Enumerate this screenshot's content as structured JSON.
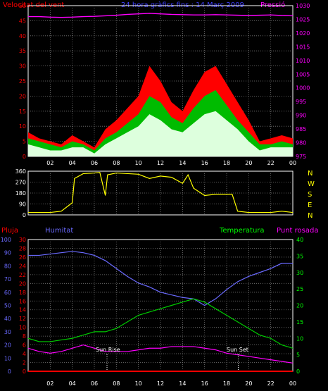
{
  "colors": {
    "background": "#000000",
    "panel_border": "#ffffff",
    "grid": "#7a7a7a",
    "wind_speed": "#ff0000",
    "wind_avg": "#00bb00",
    "wind_low": "#ddffdd",
    "pressure": "#ff00ff",
    "wind_dir": "#ffff00",
    "humidity": "#6a6aff",
    "temperature": "#00cc00",
    "dewpoint": "#ff00ff",
    "rain": "#ff0000",
    "header_title": "#4040ff",
    "label_red": "#ff0000",
    "label_green": "#00ff00",
    "label_magenta": "#ff00ff",
    "tick_white": "#ffffff",
    "marker": "#ffffff"
  },
  "header": {
    "left": "Velocitat del vent",
    "center": "24 hora gràfics fins : 14 Març 2009",
    "right": "Pressió"
  },
  "dir_letters": [
    "N",
    "W",
    "S",
    "E",
    "N"
  ],
  "lower_header": {
    "rain": "Pluja",
    "humidity": "Humitat",
    "temperature": "Temperatura",
    "dewpoint": "Punt rosada"
  },
  "markers": {
    "sunrise": "Sun Rise",
    "sunset": "Sun Set"
  },
  "chart_data": [
    {
      "type": "line",
      "title": "",
      "x_label_ticks": [
        "02",
        "04",
        "06",
        "08",
        "10",
        "12",
        "14",
        "16",
        "18",
        "20",
        "22",
        "00"
      ],
      "x_hours": [
        0,
        1,
        2,
        3,
        4,
        5,
        6,
        7,
        8,
        9,
        10,
        11,
        12,
        13,
        14,
        15,
        16,
        17,
        18,
        19,
        20,
        21,
        22,
        23,
        24
      ],
      "y_left": {
        "label": "Velocitat del vent",
        "range": [
          0,
          50
        ],
        "ticks": [
          0,
          5,
          10,
          15,
          20,
          25,
          30,
          35,
          40,
          45,
          50
        ]
      },
      "y_right": {
        "label": "Pressió",
        "range": [
          975,
          1030
        ],
        "ticks": [
          975,
          980,
          985,
          990,
          995,
          1000,
          1005,
          1010,
          1015,
          1020,
          1025,
          1030
        ]
      },
      "grid": true,
      "series": [
        {
          "name": "Velocitat del vent",
          "axis": "left",
          "values": [
            8,
            6,
            5,
            4,
            7,
            5,
            3,
            9,
            12,
            16,
            20,
            30,
            25,
            18,
            15,
            22,
            28,
            30,
            24,
            18,
            12,
            5,
            6,
            7,
            6
          ]
        },
        {
          "axis": "left",
          "values": [
            6,
            5,
            4,
            3,
            5,
            4,
            2,
            6,
            8,
            11,
            14,
            20,
            18,
            13,
            11,
            16,
            20,
            22,
            17,
            12,
            8,
            4,
            4,
            5,
            4
          ]
        },
        {
          "axis": "left",
          "values": [
            4,
            3,
            2,
            2,
            3,
            3,
            1,
            4,
            6,
            8,
            10,
            14,
            12,
            9,
            8,
            11,
            14,
            15,
            12,
            9,
            5,
            2,
            3,
            3,
            3
          ]
        },
        {
          "name": "Pressió",
          "axis": "right",
          "values": [
            1026,
            1026,
            1025.8,
            1025.7,
            1025.8,
            1026,
            1026.1,
            1026.3,
            1026.5,
            1026.8,
            1027,
            1027.2,
            1027,
            1026.8,
            1026.7,
            1026.6,
            1026.6,
            1026.7,
            1026.6,
            1026.5,
            1026.4,
            1026.5,
            1026.6,
            1026.4,
            1026.3
          ]
        }
      ]
    },
    {
      "type": "line",
      "title": "",
      "y": {
        "range": [
          0,
          360
        ],
        "ticks": [
          0,
          90,
          180,
          270,
          360
        ]
      },
      "grid": true,
      "series": [
        {
          "axis": "left",
          "x_hours": [
            0,
            2,
            3,
            4,
            4.2,
            5,
            6,
            6.5,
            7,
            7.2,
            8,
            9,
            10,
            11,
            12,
            13,
            14,
            14.5,
            15,
            16,
            17,
            18,
            18.5,
            19,
            20,
            21,
            22,
            23,
            24
          ],
          "values": [
            20,
            20,
            30,
            100,
            300,
            340,
            345,
            350,
            160,
            330,
            345,
            340,
            335,
            300,
            320,
            310,
            260,
            330,
            220,
            160,
            170,
            170,
            170,
            30,
            20,
            20,
            20,
            30,
            20
          ]
        }
      ]
    },
    {
      "type": "line",
      "title": "",
      "x_label_ticks": [
        "02",
        "04",
        "06",
        "08",
        "10",
        "12",
        "14",
        "16",
        "18",
        "20",
        "22",
        "00"
      ],
      "x_hours": [
        0,
        1,
        2,
        3,
        4,
        5,
        6,
        7,
        8,
        9,
        10,
        11,
        12,
        13,
        14,
        15,
        16,
        17,
        18,
        19,
        20,
        21,
        22,
        23,
        24
      ],
      "y_pluja": {
        "label": "Pluja",
        "range": [
          0,
          30
        ],
        "ticks": [
          0,
          2,
          4,
          6,
          8,
          10,
          12,
          14,
          16,
          18,
          20,
          22,
          24,
          26,
          28,
          30
        ]
      },
      "y_humitat": {
        "label": "Humitat",
        "range": [
          0,
          100
        ],
        "ticks": [
          0,
          10,
          20,
          30,
          40,
          50,
          60,
          70,
          80,
          90,
          100
        ]
      },
      "y_temp": {
        "label": "Temperatura",
        "range": [
          0,
          40
        ],
        "ticks": [
          0,
          5,
          10,
          15,
          20,
          25,
          30,
          35,
          40
        ]
      },
      "grid": true,
      "series": [
        {
          "name": "Humitat",
          "axis": "humitat",
          "values": [
            88,
            88,
            89,
            90,
            91,
            90,
            88,
            84,
            78,
            72,
            67,
            64,
            60,
            58,
            56,
            55,
            50,
            55,
            62,
            68,
            72,
            75,
            78,
            82,
            82
          ]
        },
        {
          "name": "Temperatura",
          "axis": "temp",
          "values": [
            10,
            9,
            9,
            9.5,
            10,
            11,
            12,
            12,
            13,
            15,
            17,
            18,
            19,
            20,
            21,
            22,
            21,
            19,
            17,
            15,
            13,
            11,
            10,
            8,
            7
          ]
        },
        {
          "name": "Punt rosada",
          "axis": "temp",
          "values": [
            7,
            6,
            5.5,
            6,
            7,
            8,
            7,
            6,
            6,
            6,
            6.5,
            7,
            7,
            7.5,
            7.5,
            7.5,
            7,
            6.5,
            5.5,
            5,
            4.5,
            4,
            3.5,
            3,
            2.5
          ]
        },
        {
          "name": "Pluja",
          "axis": "pluja",
          "values": [
            0,
            0,
            0,
            0,
            0,
            0,
            0,
            0,
            0,
            0,
            0,
            0,
            0,
            0,
            0,
            0,
            0,
            0,
            0,
            0,
            0,
            0,
            0,
            0,
            0
          ]
        }
      ]
    }
  ]
}
